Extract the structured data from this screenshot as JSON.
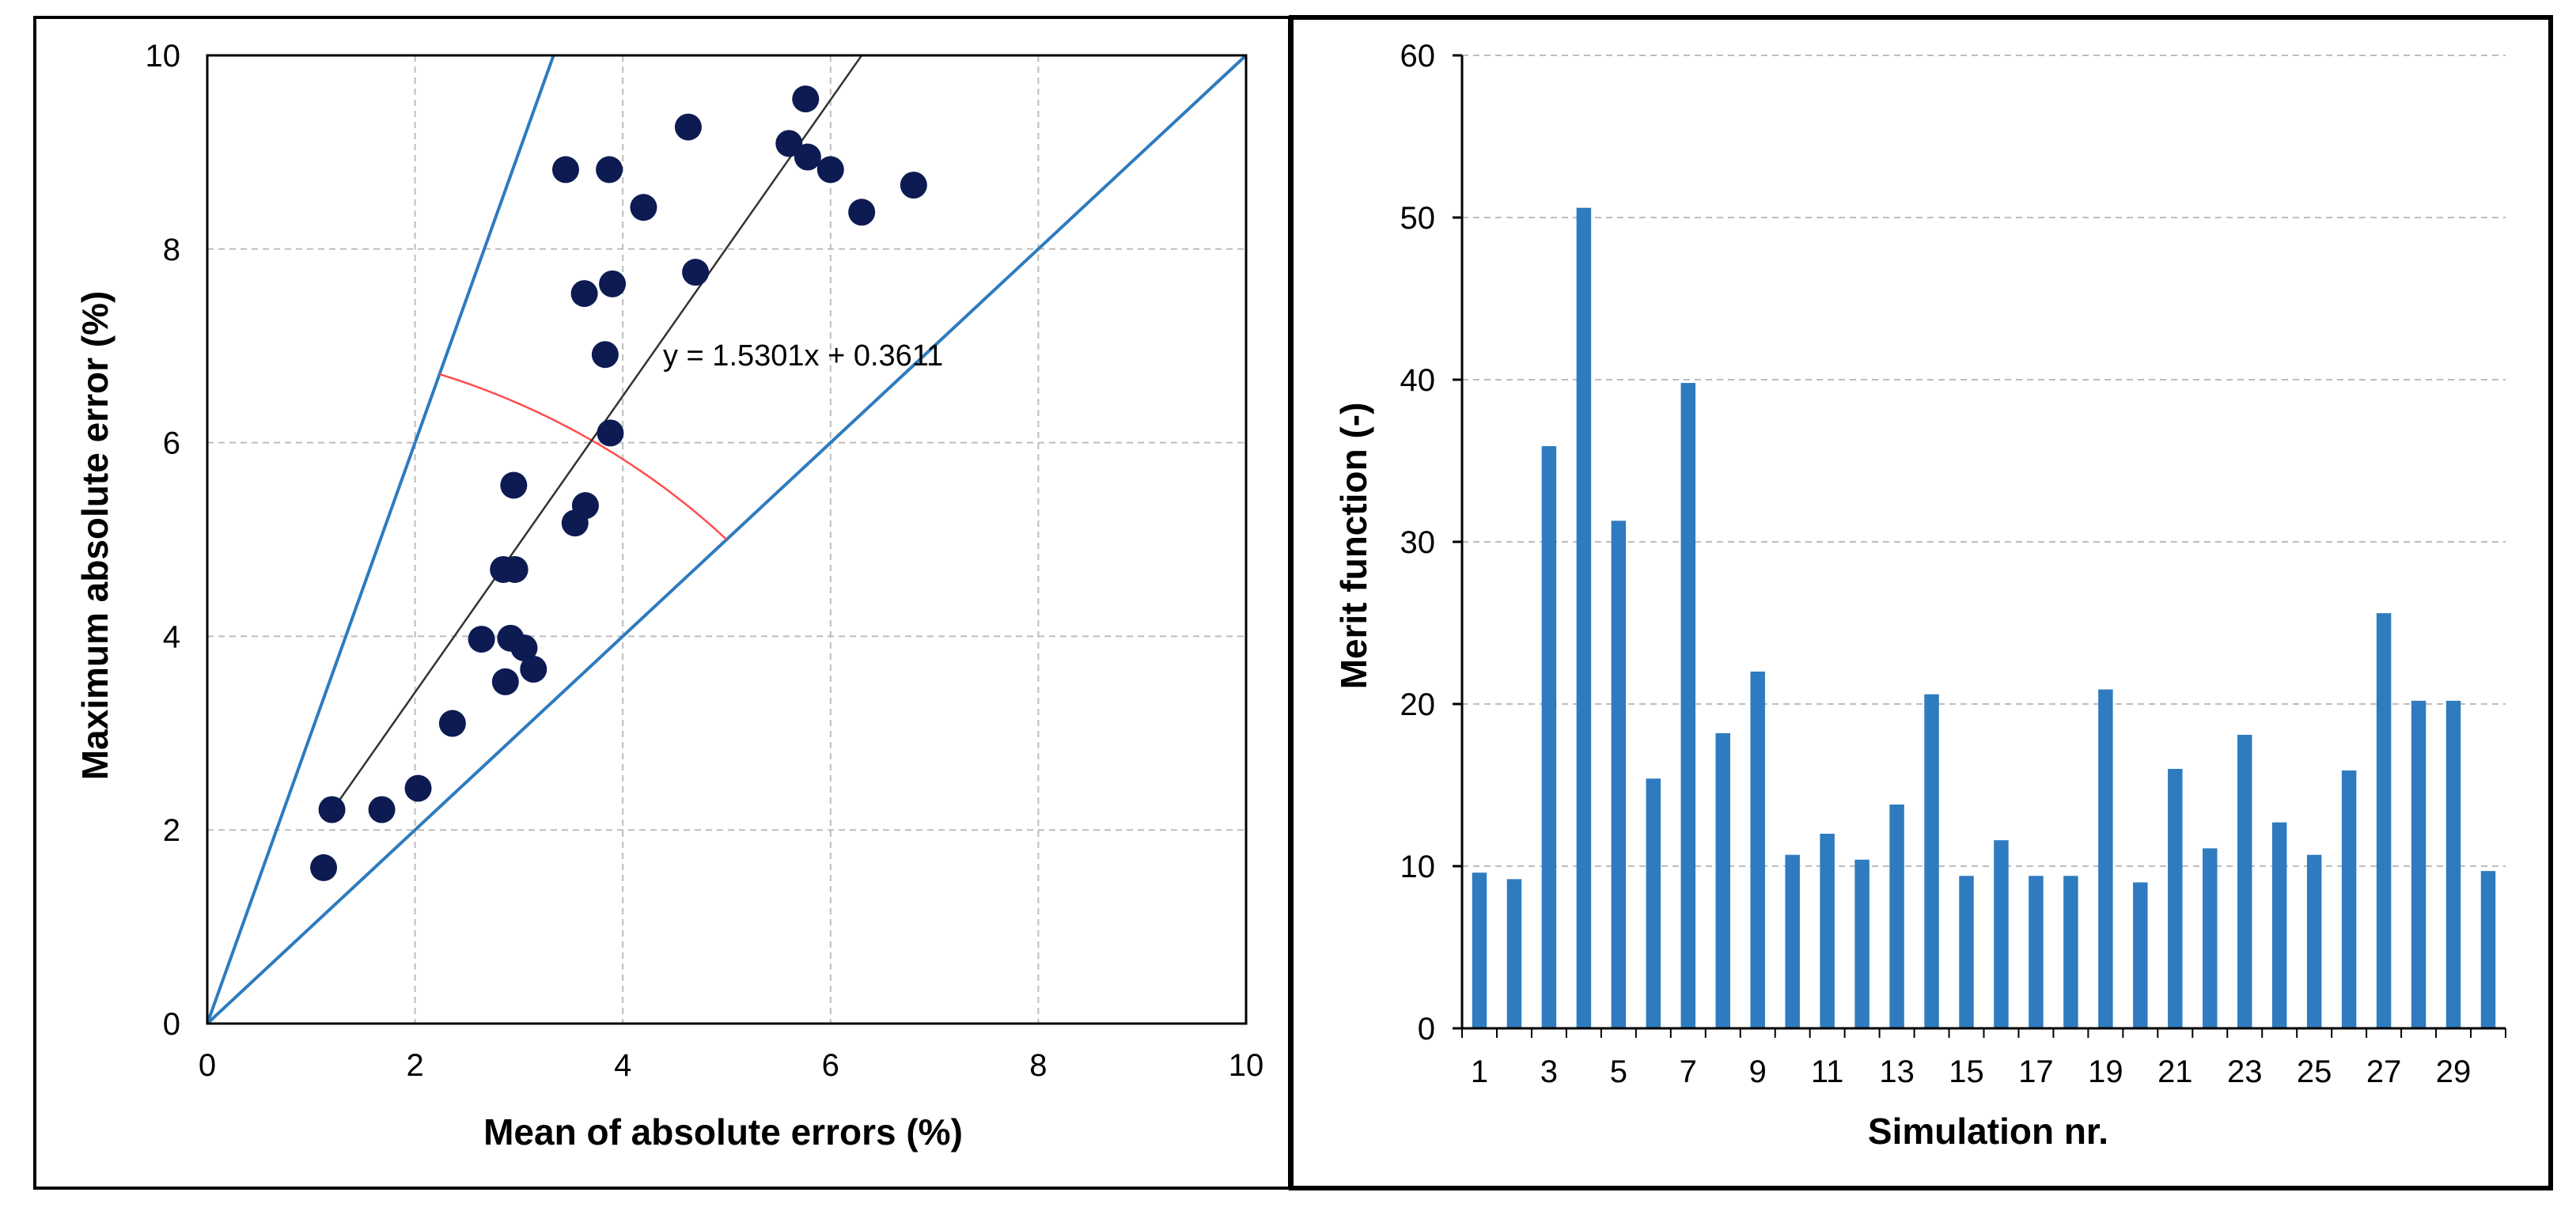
{
  "chart_data": [
    {
      "type": "scatter",
      "xlabel": "Mean of absolute errors (%)",
      "ylabel": "Maximum absolute error (%)",
      "xlim": [
        0,
        10
      ],
      "ylim": [
        0,
        10
      ],
      "xticks": [
        "0",
        "2",
        "4",
        "6",
        "8",
        "10"
      ],
      "yticks": [
        "0",
        "2",
        "4",
        "6",
        "8",
        "10"
      ],
      "grid": true,
      "points": [
        {
          "x": 1.12,
          "y": 1.61
        },
        {
          "x": 1.2,
          "y": 2.21
        },
        {
          "x": 1.68,
          "y": 2.21
        },
        {
          "x": 2.03,
          "y": 2.43
        },
        {
          "x": 2.36,
          "y": 3.1
        },
        {
          "x": 2.64,
          "y": 3.97
        },
        {
          "x": 2.87,
          "y": 3.53
        },
        {
          "x": 2.92,
          "y": 3.98
        },
        {
          "x": 3.05,
          "y": 3.88
        },
        {
          "x": 3.14,
          "y": 3.66
        },
        {
          "x": 2.85,
          "y": 4.69
        },
        {
          "x": 2.96,
          "y": 4.69
        },
        {
          "x": 2.95,
          "y": 5.56
        },
        {
          "x": 3.54,
          "y": 5.17
        },
        {
          "x": 3.64,
          "y": 5.35
        },
        {
          "x": 3.88,
          "y": 6.1
        },
        {
          "x": 3.83,
          "y": 6.91
        },
        {
          "x": 3.63,
          "y": 7.54
        },
        {
          "x": 3.9,
          "y": 7.64
        },
        {
          "x": 4.7,
          "y": 7.76
        },
        {
          "x": 3.45,
          "y": 8.82
        },
        {
          "x": 3.87,
          "y": 8.82
        },
        {
          "x": 4.2,
          "y": 8.43
        },
        {
          "x": 4.63,
          "y": 9.26
        },
        {
          "x": 5.6,
          "y": 9.09
        },
        {
          "x": 5.76,
          "y": 9.55
        },
        {
          "x": 5.78,
          "y": 8.95
        },
        {
          "x": 6.0,
          "y": 8.82
        },
        {
          "x": 6.3,
          "y": 8.38
        },
        {
          "x": 6.8,
          "y": 8.66
        }
      ],
      "trendline": {
        "slope": 1.5301,
        "intercept": 0.3611,
        "x_range": [
          1.2,
          6.3
        ]
      },
      "trendline_label": "y = 1.5301x + 0.3611",
      "reference_lines": [
        {
          "slope": 3,
          "intercept": 0
        },
        {
          "slope": 1,
          "intercept": 0
        }
      ],
      "arc": {
        "center": [
          0,
          0
        ],
        "radius": 7.07,
        "from_line_slope": 3,
        "to_line_slope": 1
      },
      "colors": {
        "points": "#0d1b52",
        "lines": "#2e7bbf",
        "trend": "#333333",
        "arc": "#ff4d4d"
      }
    },
    {
      "type": "bar",
      "xlabel": "Simulation nr.",
      "ylabel": "Merit function (-)",
      "ylim": [
        0,
        60
      ],
      "yticks": [
        "0",
        "10",
        "20",
        "30",
        "40",
        "50",
        "60"
      ],
      "grid": true,
      "categories": [
        "1",
        "2",
        "3",
        "4",
        "5",
        "6",
        "7",
        "8",
        "9",
        "10",
        "11",
        "12",
        "13",
        "14",
        "15",
        "16",
        "17",
        "18",
        "19",
        "20",
        "21",
        "22",
        "23",
        "24",
        "25",
        "26",
        "27",
        "28",
        "29",
        "30"
      ],
      "xtick_labels": [
        "1",
        "3",
        "5",
        "7",
        "9",
        "11",
        "13",
        "15",
        "17",
        "19",
        "21",
        "23",
        "25",
        "27",
        "29"
      ],
      "values": [
        9.6,
        9.2,
        35.9,
        50.6,
        31.3,
        15.4,
        39.8,
        18.2,
        22.0,
        10.7,
        12.0,
        10.4,
        13.8,
        20.6,
        9.4,
        11.6,
        9.4,
        9.4,
        20.9,
        9.0,
        16.0,
        11.1,
        18.1,
        12.7,
        10.7,
        15.9,
        25.6,
        20.2,
        20.2,
        9.7
      ],
      "colors": {
        "bars": "#2e7bbf"
      }
    }
  ]
}
